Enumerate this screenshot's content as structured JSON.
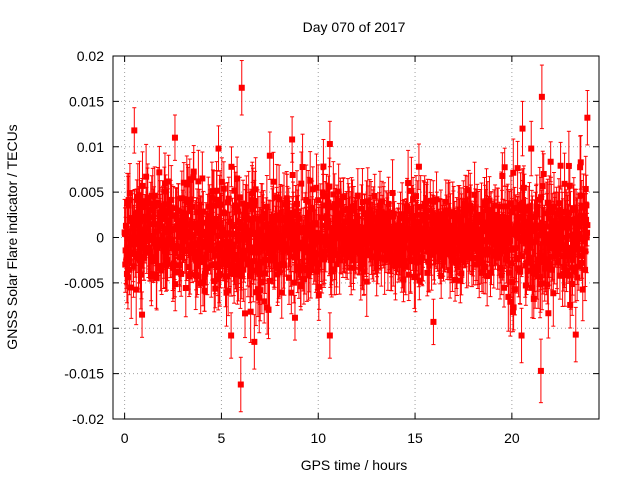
{
  "chart_data": {
    "type": "scatter",
    "title": "Day 070 of 2017",
    "xlabel": "GPS time / hours",
    "ylabel": "GNSS Solar Flare indicator / TECUs",
    "xlim": [
      -0.6,
      24.5
    ],
    "ylim": [
      -0.02,
      0.02
    ],
    "xticks": [
      0,
      5,
      10,
      15,
      20
    ],
    "xtick_labels": [
      "0",
      "5",
      "10",
      "15",
      "20"
    ],
    "yticks": [
      -0.02,
      -0.015,
      -0.01,
      -0.005,
      0,
      0.005,
      0.01,
      0.015,
      0.02
    ],
    "ytick_labels": [
      "-0.02",
      "-0.015",
      "-0.01",
      "-0.005",
      "0",
      "0.005",
      "0.01",
      "0.015",
      "0.02"
    ],
    "grid": true,
    "series": [
      {
        "name": "solar flare indicator",
        "color": "#ff0000",
        "marker": "square",
        "error_bars": true,
        "x_range": [
          0,
          23.9
        ],
        "n_points": 1400,
        "typical_std": 0.0028,
        "typical_error": 0.003
      }
    ],
    "notable_points": [
      {
        "x": 6.05,
        "y": 0.0165,
        "err": 0.003
      },
      {
        "x": 6.0,
        "y": -0.0162,
        "err": 0.003
      },
      {
        "x": 21.55,
        "y": 0.0155,
        "err": 0.0035
      },
      {
        "x": 21.5,
        "y": -0.0147,
        "err": 0.0035
      },
      {
        "x": 23.9,
        "y": 0.0132,
        "err": 0.003
      },
      {
        "x": 0.5,
        "y": 0.0118,
        "err": 0.0025
      },
      {
        "x": 20.55,
        "y": 0.012,
        "err": 0.003
      },
      {
        "x": 2.6,
        "y": 0.011,
        "err": 0.0025
      },
      {
        "x": 8.65,
        "y": 0.0108,
        "err": 0.0025
      },
      {
        "x": 10.6,
        "y": 0.0103,
        "err": 0.0025
      },
      {
        "x": 10.6,
        "y": -0.0108,
        "err": 0.0025
      },
      {
        "x": 5.5,
        "y": -0.0108,
        "err": 0.0025
      },
      {
        "x": 6.7,
        "y": -0.0115,
        "err": 0.003
      },
      {
        "x": 15.95,
        "y": -0.0093,
        "err": 0.0025
      },
      {
        "x": 20.5,
        "y": -0.0108,
        "err": 0.003
      },
      {
        "x": 23.3,
        "y": -0.0107,
        "err": 0.003
      },
      {
        "x": 0.9,
        "y": -0.0085,
        "err": 0.0025
      },
      {
        "x": 21.0,
        "y": 0.0098,
        "err": 0.003
      },
      {
        "x": 4.85,
        "y": 0.0098,
        "err": 0.0025
      },
      {
        "x": 15.2,
        "y": 0.0078,
        "err": 0.0025
      }
    ]
  }
}
